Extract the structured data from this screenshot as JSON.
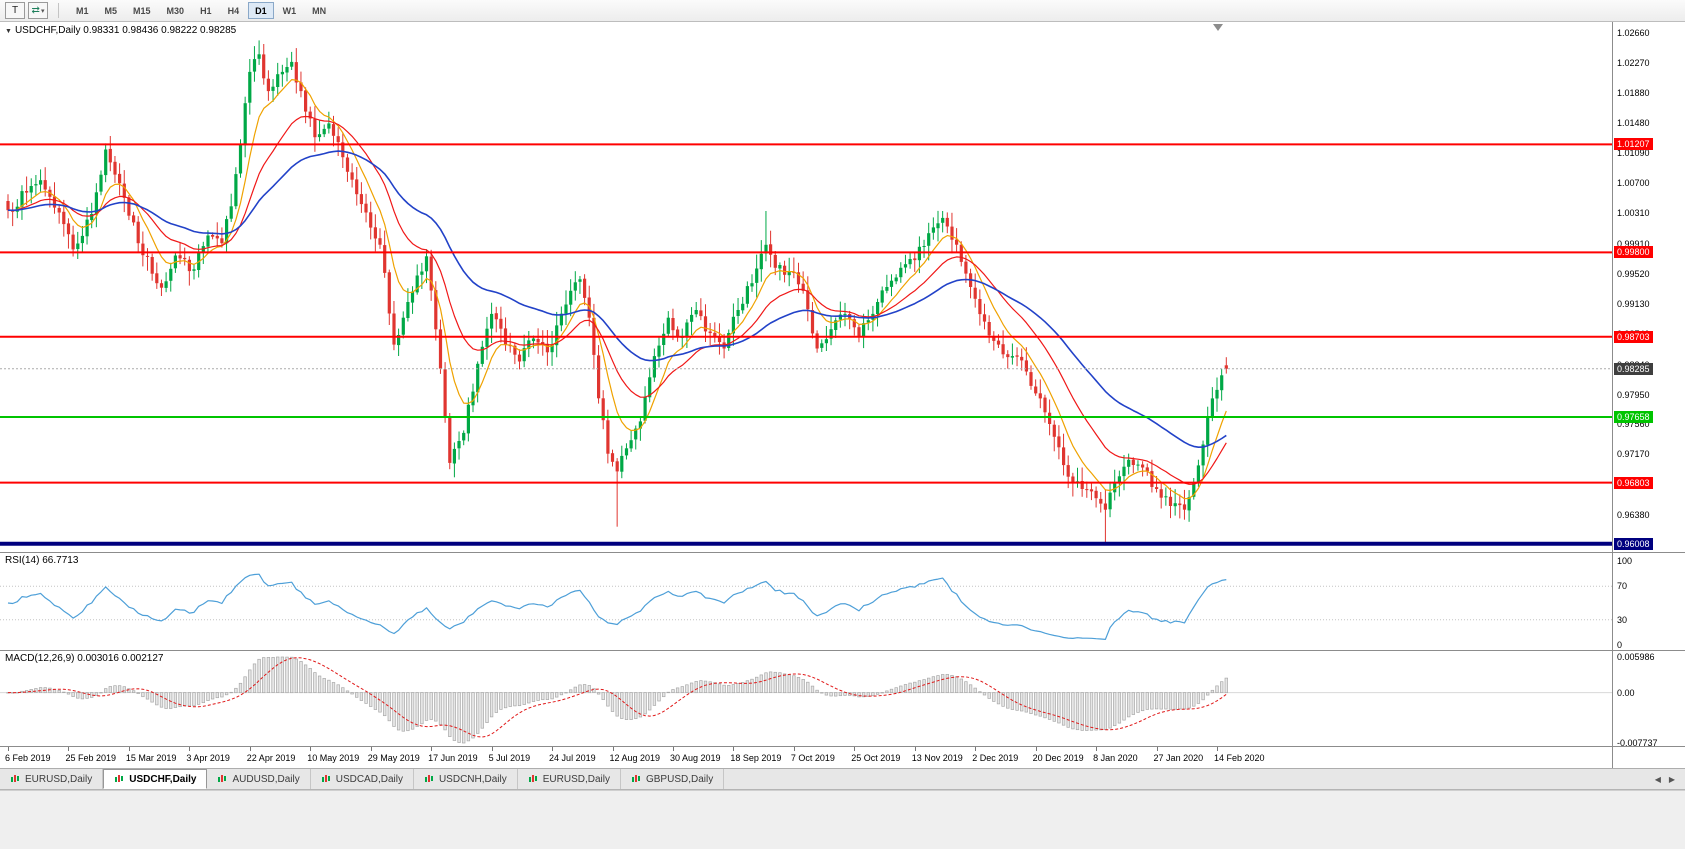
{
  "toolbar": {
    "tool_button": "T",
    "cursor_icon": "⇄",
    "caret": "▾",
    "timeframes": [
      "M1",
      "M5",
      "M15",
      "M30",
      "H1",
      "H4",
      "D1",
      "W1",
      "MN"
    ],
    "active_timeframe": "D1"
  },
  "chart_data": {
    "type": "candlestick",
    "symbol": "USDCHF",
    "period": "Daily",
    "header": "USDCHF,Daily 0.98331 0.98436 0.98222 0.98285",
    "ohlc": {
      "open": "0.98331",
      "high": "0.98436",
      "low": "0.98222",
      "close": "0.98285"
    },
    "current_price": 0.98285,
    "current_price_badge": "0.98285",
    "y_axis": {
      "max": 1.028,
      "min": 0.959,
      "tick_labels": [
        "1.02660",
        "1.02270",
        "1.01880",
        "1.01480",
        "1.01090",
        "1.00700",
        "1.00310",
        "0.99910",
        "0.99520",
        "0.99130",
        "0.98740",
        "0.98340",
        "0.97950",
        "0.97560",
        "0.97170",
        "0.96780",
        "0.96380",
        "0.95990"
      ]
    },
    "x_axis": {
      "tick_labels": [
        "6 Feb 2019",
        "25 Feb 2019",
        "15 Mar 2019",
        "3 Apr 2019",
        "22 Apr 2019",
        "10 May 2019",
        "29 May 2019",
        "17 Jun 2019",
        "5 Jul 2019",
        "24 Jul 2019",
        "12 Aug 2019",
        "30 Aug 2019",
        "18 Sep 2019",
        "7 Oct 2019",
        "25 Oct 2019",
        "13 Nov 2019",
        "2 Dec 2019",
        "20 Dec 2019",
        "8 Jan 2020",
        "27 Jan 2020",
        "14 Feb 2020"
      ],
      "candles_per_tick": 13
    },
    "num_candles": 263,
    "close_anchors": [
      [
        0,
        1.0035
      ],
      [
        4,
        1.0058
      ],
      [
        7,
        1.0074
      ],
      [
        11,
        1.0032
      ],
      [
        14,
        0.9984
      ],
      [
        18,
        1.003
      ],
      [
        21,
        1.0114
      ],
      [
        24,
        1.007
      ],
      [
        28,
        0.9992
      ],
      [
        33,
        0.9934
      ],
      [
        36,
        0.9976
      ],
      [
        40,
        0.9958
      ],
      [
        43,
        1.0002
      ],
      [
        46,
        0.9992
      ],
      [
        48,
        1.004
      ],
      [
        50,
        1.012
      ],
      [
        52,
        1.0215
      ],
      [
        54,
        1.0238
      ],
      [
        56,
        1.019
      ],
      [
        58,
        1.0212
      ],
      [
        61,
        1.0228
      ],
      [
        63,
        1.019
      ],
      [
        66,
        1.013
      ],
      [
        69,
        1.0148
      ],
      [
        73,
        1.0085
      ],
      [
        77,
        1.0032
      ],
      [
        80,
        0.999
      ],
      [
        83,
        0.986
      ],
      [
        85,
        0.9895
      ],
      [
        88,
        0.995
      ],
      [
        90,
        0.9975
      ],
      [
        92,
        0.988
      ],
      [
        95,
        0.9706
      ],
      [
        98,
        0.9745
      ],
      [
        101,
        0.9835
      ],
      [
        104,
        0.99
      ],
      [
        107,
        0.986
      ],
      [
        110,
        0.9838
      ],
      [
        113,
        0.9868
      ],
      [
        116,
        0.985
      ],
      [
        118,
        0.9885
      ],
      [
        121,
        0.993
      ],
      [
        123,
        0.9945
      ],
      [
        125,
        0.9895
      ],
      [
        127,
        0.979
      ],
      [
        129,
        0.9718
      ],
      [
        131,
        0.9695
      ],
      [
        133,
        0.9725
      ],
      [
        136,
        0.976
      ],
      [
        139,
        0.9845
      ],
      [
        142,
        0.9895
      ],
      [
        145,
        0.987
      ],
      [
        148,
        0.9905
      ],
      [
        151,
        0.9875
      ],
      [
        154,
        0.9855
      ],
      [
        157,
        0.9905
      ],
      [
        160,
        0.994
      ],
      [
        163,
        0.999
      ],
      [
        165,
        0.996
      ],
      [
        168,
        0.9955
      ],
      [
        171,
        0.993
      ],
      [
        174,
        0.9855
      ],
      [
        177,
        0.988
      ],
      [
        180,
        0.99
      ],
      [
        183,
        0.987
      ],
      [
        186,
        0.99
      ],
      [
        189,
        0.9935
      ],
      [
        192,
        0.996
      ],
      [
        195,
        0.997
      ],
      [
        198,
        1.0005
      ],
      [
        201,
        1.0025
      ],
      [
        204,
        0.999
      ],
      [
        207,
        0.9935
      ],
      [
        210,
        0.989
      ],
      [
        213,
        0.986
      ],
      [
        216,
        0.9845
      ],
      [
        219,
        0.9825
      ],
      [
        222,
        0.979
      ],
      [
        225,
        0.974
      ],
      [
        228,
        0.9688
      ],
      [
        231,
        0.9672
      ],
      [
        234,
        0.966
      ],
      [
        236,
        0.9645
      ],
      [
        238,
        0.968
      ],
      [
        241,
        0.971
      ],
      [
        244,
        0.97
      ],
      [
        247,
        0.9672
      ],
      [
        250,
        0.965
      ],
      [
        253,
        0.9645
      ],
      [
        255,
        0.968
      ],
      [
        257,
        0.973
      ],
      [
        259,
        0.979
      ],
      [
        261,
        0.982
      ],
      [
        262,
        0.98285
      ]
    ],
    "wick_overrides": [
      {
        "i": 21,
        "high": 1.0122
      },
      {
        "i": 54,
        "high": 1.0256
      },
      {
        "i": 131,
        "low": 0.9623
      },
      {
        "i": 163,
        "high": 1.0034
      },
      {
        "i": 201,
        "high": 1.0034
      },
      {
        "i": 236,
        "low": 0.9601
      },
      {
        "i": 253,
        "low": 0.9632
      }
    ],
    "last_candle": {
      "open": 0.98331,
      "high": 0.98436,
      "low": 0.98222,
      "close": 0.98285
    },
    "horizontal_lines": [
      {
        "value": 1.01207,
        "label": "1.01207",
        "color": "#FF0000",
        "width": 2
      },
      {
        "value": 0.998,
        "label": "0.99800",
        "color": "#FF0000",
        "width": 2
      },
      {
        "value": 0.98703,
        "label": "0.98703",
        "color": "#FF0000",
        "width": 2
      },
      {
        "value": 0.96803,
        "label": "0.96803",
        "color": "#FF0000",
        "width": 2
      },
      {
        "value": 0.97658,
        "label": "0.97658",
        "color": "#00C400",
        "width": 2
      },
      {
        "value": 0.96008,
        "label": "0.96008",
        "color": "#00007F",
        "width": 4
      }
    ],
    "moving_averages": [
      {
        "name": "fast-ma",
        "type": "ema",
        "period": 8,
        "color": "#EFA200",
        "width": 1.2
      },
      {
        "name": "mid-ma",
        "type": "ema",
        "period": 20,
        "color": "#F01818",
        "width": 1.2
      },
      {
        "name": "slow-ma",
        "type": "ema",
        "period": 45,
        "color": "#2242C8",
        "width": 1.6
      }
    ],
    "candle_colors": {
      "bull": "#00A846",
      "bear": "#E03530"
    },
    "indicators": [
      {
        "type": "rsi",
        "label": "RSI(14) 66.7713",
        "period": 14,
        "last_value": 66.7713,
        "levels": [
          70,
          30
        ],
        "axis_tick_labels": [
          "100",
          "70",
          "30",
          "0"
        ],
        "range": [
          0,
          100
        ],
        "color": "#4D9FD8"
      },
      {
        "type": "macd",
        "label": "MACD(12,26,9) 0.003016 0.002127",
        "fast_period": 12,
        "slow_period": 26,
        "signal_period": 9,
        "macd_value": 0.003016,
        "signal_value": 0.002127,
        "axis_tick_labels": [
          "0.005986",
          "0.00",
          "-0.007737"
        ],
        "histogram_fill": "#E6E6E6",
        "histogram_stroke": "#A8A8A8",
        "signal_color": "#E01818"
      }
    ]
  },
  "tabs": {
    "items": [
      {
        "label": "EURUSD,Daily",
        "active": false
      },
      {
        "label": "USDCHF,Daily",
        "active": true
      },
      {
        "label": "AUDUSD,Daily",
        "active": false
      },
      {
        "label": "USDCAD,Daily",
        "active": false
      },
      {
        "label": "USDCNH,Daily",
        "active": false
      },
      {
        "label": "EURUSD,Daily",
        "active": false
      },
      {
        "label": "GBPUSD,Daily",
        "active": false
      }
    ],
    "nav_left": "◀",
    "nav_right": "▶"
  }
}
